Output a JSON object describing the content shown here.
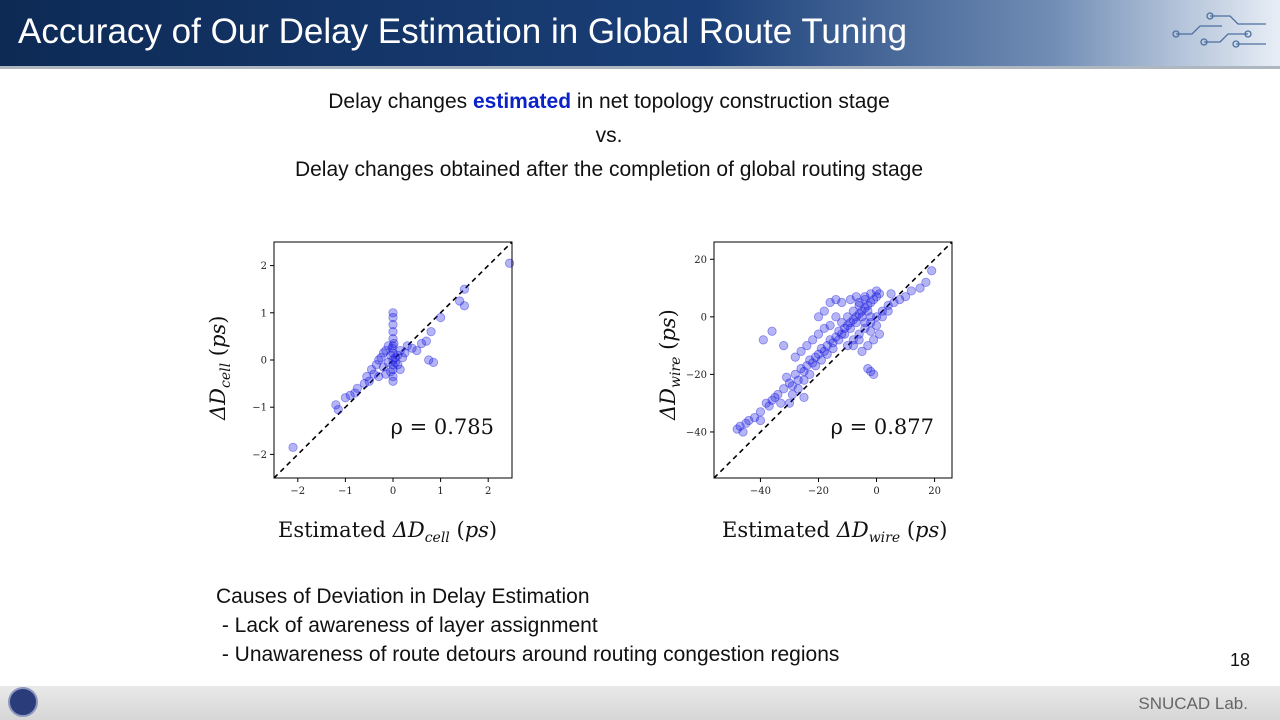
{
  "slide": {
    "title": "Accuracy of Our Delay Estimation in Global Route Tuning",
    "page_number": "18",
    "footer": "SNUCAD Lab."
  },
  "intro": {
    "line1_pre": "Delay changes ",
    "line1_highlight": "estimated",
    "line1_post": " in net topology construction stage",
    "line2": "vs.",
    "line3": "Delay changes obtained after the completion of global routing stage"
  },
  "causes": {
    "heading": "Causes of Deviation in Delay Estimation",
    "items": [
      " - Lack of awareness of layer assignment",
      " - Unawareness of route detours around routing congestion regions"
    ]
  },
  "chart_data": [
    {
      "type": "scatter",
      "xlabel": "Estimated ΔD_cell (ps)",
      "ylabel": "ΔD_cell (ps)",
      "xlim": [
        -2.5,
        2.5
      ],
      "ylim": [
        -2.5,
        2.5
      ],
      "xticks": [
        -2,
        -1,
        0,
        1,
        2
      ],
      "yticks": [
        -2,
        -1,
        0,
        1,
        2
      ],
      "annotation": "ρ = 0.785",
      "reference_line": "y = x (dashed)",
      "marker_color": "#1a1adf",
      "points": [
        [
          -2.1,
          -1.85
        ],
        [
          -1.2,
          -0.95
        ],
        [
          -1.15,
          -1.05
        ],
        [
          -1.0,
          -0.8
        ],
        [
          -0.9,
          -0.75
        ],
        [
          -0.8,
          -0.7
        ],
        [
          -0.75,
          -0.6
        ],
        [
          -0.6,
          -0.5
        ],
        [
          -0.55,
          -0.35
        ],
        [
          -0.5,
          -0.45
        ],
        [
          -0.45,
          -0.2
        ],
        [
          -0.4,
          -0.3
        ],
        [
          -0.35,
          -0.1
        ],
        [
          -0.3,
          0.0
        ],
        [
          -0.3,
          -0.35
        ],
        [
          -0.25,
          0.05
        ],
        [
          -0.2,
          -0.15
        ],
        [
          -0.2,
          0.15
        ],
        [
          -0.15,
          0.2
        ],
        [
          -0.1,
          -0.05
        ],
        [
          -0.1,
          0.3
        ],
        [
          -0.05,
          0.1
        ],
        [
          -0.05,
          -0.25
        ],
        [
          0.0,
          1.0
        ],
        [
          0.0,
          0.9
        ],
        [
          0.0,
          0.75
        ],
        [
          0.0,
          0.6
        ],
        [
          0.0,
          0.45
        ],
        [
          0.0,
          0.3
        ],
        [
          0.0,
          0.15
        ],
        [
          0.0,
          0.0
        ],
        [
          0.0,
          -0.1
        ],
        [
          0.0,
          -0.2
        ],
        [
          0.0,
          -0.35
        ],
        [
          0.0,
          -0.45
        ],
        [
          -0.02,
          0.25
        ],
        [
          0.02,
          0.35
        ],
        [
          0.05,
          0.05
        ],
        [
          0.05,
          -0.05
        ],
        [
          0.1,
          0.1
        ],
        [
          0.1,
          -0.1
        ],
        [
          0.15,
          0.2
        ],
        [
          0.2,
          0.05
        ],
        [
          0.25,
          0.15
        ],
        [
          0.3,
          0.3
        ],
        [
          0.4,
          0.25
        ],
        [
          0.5,
          0.2
        ],
        [
          0.6,
          0.35
        ],
        [
          0.7,
          0.4
        ],
        [
          0.75,
          0.0
        ],
        [
          0.8,
          0.6
        ],
        [
          0.85,
          -0.05
        ],
        [
          1.0,
          0.9
        ],
        [
          1.5,
          1.5
        ],
        [
          1.4,
          1.25
        ],
        [
          1.5,
          1.15
        ],
        [
          2.45,
          2.05
        ],
        [
          0.15,
          -0.2
        ],
        [
          -0.15,
          -0.3
        ]
      ]
    },
    {
      "type": "scatter",
      "xlabel": "Estimated ΔD_wire (ps)",
      "ylabel": "ΔD_wire (ps)",
      "xlim": [
        -56,
        26
      ],
      "ylim": [
        -56,
        26
      ],
      "xticks": [
        -40,
        -20,
        0,
        20
      ],
      "yticks": [
        -40,
        -20,
        0,
        20
      ],
      "annotation": "ρ = 0.877",
      "reference_line": "y = x (dashed)",
      "marker_color": "#1a1adf",
      "points": [
        [
          -48,
          -39
        ],
        [
          -46,
          -40
        ],
        [
          -47,
          -38
        ],
        [
          -44,
          -36
        ],
        [
          -42,
          -35
        ],
        [
          -45,
          -37
        ],
        [
          -40,
          -33
        ],
        [
          -38,
          -30
        ],
        [
          -37,
          -31
        ],
        [
          -35,
          -28
        ],
        [
          -34,
          -27
        ],
        [
          -36,
          -29
        ],
        [
          -32,
          -25
        ],
        [
          -30,
          -23
        ],
        [
          -31,
          -21
        ],
        [
          -29,
          -24
        ],
        [
          -28,
          -20
        ],
        [
          -27,
          -22
        ],
        [
          -26,
          -18
        ],
        [
          -25,
          -19
        ],
        [
          -24,
          -17
        ],
        [
          -23,
          -15
        ],
        [
          -22,
          -16
        ],
        [
          -21,
          -14
        ],
        [
          -20,
          -13
        ],
        [
          -19,
          -11
        ],
        [
          -18,
          -12
        ],
        [
          -17,
          -10
        ],
        [
          -16,
          -8
        ],
        [
          -15,
          -9
        ],
        [
          -14,
          -7
        ],
        [
          -13,
          -5
        ],
        [
          -12,
          -6
        ],
        [
          -11,
          -4
        ],
        [
          -10,
          -3
        ],
        [
          -9,
          -2
        ],
        [
          -8,
          -1
        ],
        [
          -7,
          0
        ],
        [
          -6,
          1
        ],
        [
          -5,
          2
        ],
        [
          -4,
          3
        ],
        [
          -3,
          4
        ],
        [
          -2,
          5
        ],
        [
          -1,
          6
        ],
        [
          0,
          7
        ],
        [
          1,
          8
        ],
        [
          0,
          9
        ],
        [
          -2,
          8
        ],
        [
          -4,
          6
        ],
        [
          -6,
          4
        ],
        [
          -3,
          2
        ],
        [
          -5,
          0
        ],
        [
          -7,
          -2
        ],
        [
          -9,
          -4
        ],
        [
          -11,
          -6
        ],
        [
          -13,
          -8
        ],
        [
          -15,
          -11
        ],
        [
          -17,
          -13
        ],
        [
          -19,
          -15
        ],
        [
          -21,
          -17
        ],
        [
          -23,
          -20
        ],
        [
          -25,
          -22
        ],
        [
          -27,
          -25
        ],
        [
          -29,
          -27
        ],
        [
          -33,
          -30
        ],
        [
          -12,
          -2
        ],
        [
          -10,
          0
        ],
        [
          -8,
          2
        ],
        [
          -6,
          5
        ],
        [
          -4,
          7
        ],
        [
          -2,
          -5
        ],
        [
          0,
          -3
        ],
        [
          2,
          0
        ],
        [
          4,
          2
        ],
        [
          6,
          5
        ],
        [
          8,
          6
        ],
        [
          10,
          7
        ],
        [
          12,
          9
        ],
        [
          15,
          10
        ],
        [
          17,
          12
        ],
        [
          19,
          16
        ],
        [
          5,
          8
        ],
        [
          -20,
          -6
        ],
        [
          -18,
          -4
        ],
        [
          -16,
          -3
        ],
        [
          -14,
          0
        ],
        [
          -22,
          -8
        ],
        [
          -24,
          -10
        ],
        [
          -26,
          -12
        ],
        [
          -28,
          -14
        ],
        [
          -32,
          -10
        ],
        [
          -36,
          -5
        ],
        [
          -39,
          -8
        ],
        [
          -25,
          -28
        ],
        [
          -30,
          -30
        ],
        [
          -40,
          -36
        ],
        [
          -3,
          -18
        ],
        [
          -2,
          -19
        ],
        [
          -1,
          -20
        ],
        [
          -10,
          -10
        ],
        [
          -8,
          -8
        ],
        [
          -6,
          -6
        ],
        [
          -4,
          -4
        ],
        [
          -2,
          -2
        ],
        [
          0,
          0
        ],
        [
          2,
          2
        ],
        [
          4,
          4
        ],
        [
          -5,
          -12
        ],
        [
          -3,
          -10
        ],
        [
          -1,
          -8
        ],
        [
          1,
          -6
        ],
        [
          -14,
          6
        ],
        [
          -12,
          5
        ],
        [
          -16,
          5
        ],
        [
          -18,
          2
        ],
        [
          -20,
          0
        ],
        [
          -9,
          6
        ],
        [
          -7,
          7
        ],
        [
          -2,
          0
        ],
        [
          -4,
          -2
        ],
        [
          -6,
          -8
        ],
        [
          -8,
          -10
        ]
      ]
    }
  ]
}
